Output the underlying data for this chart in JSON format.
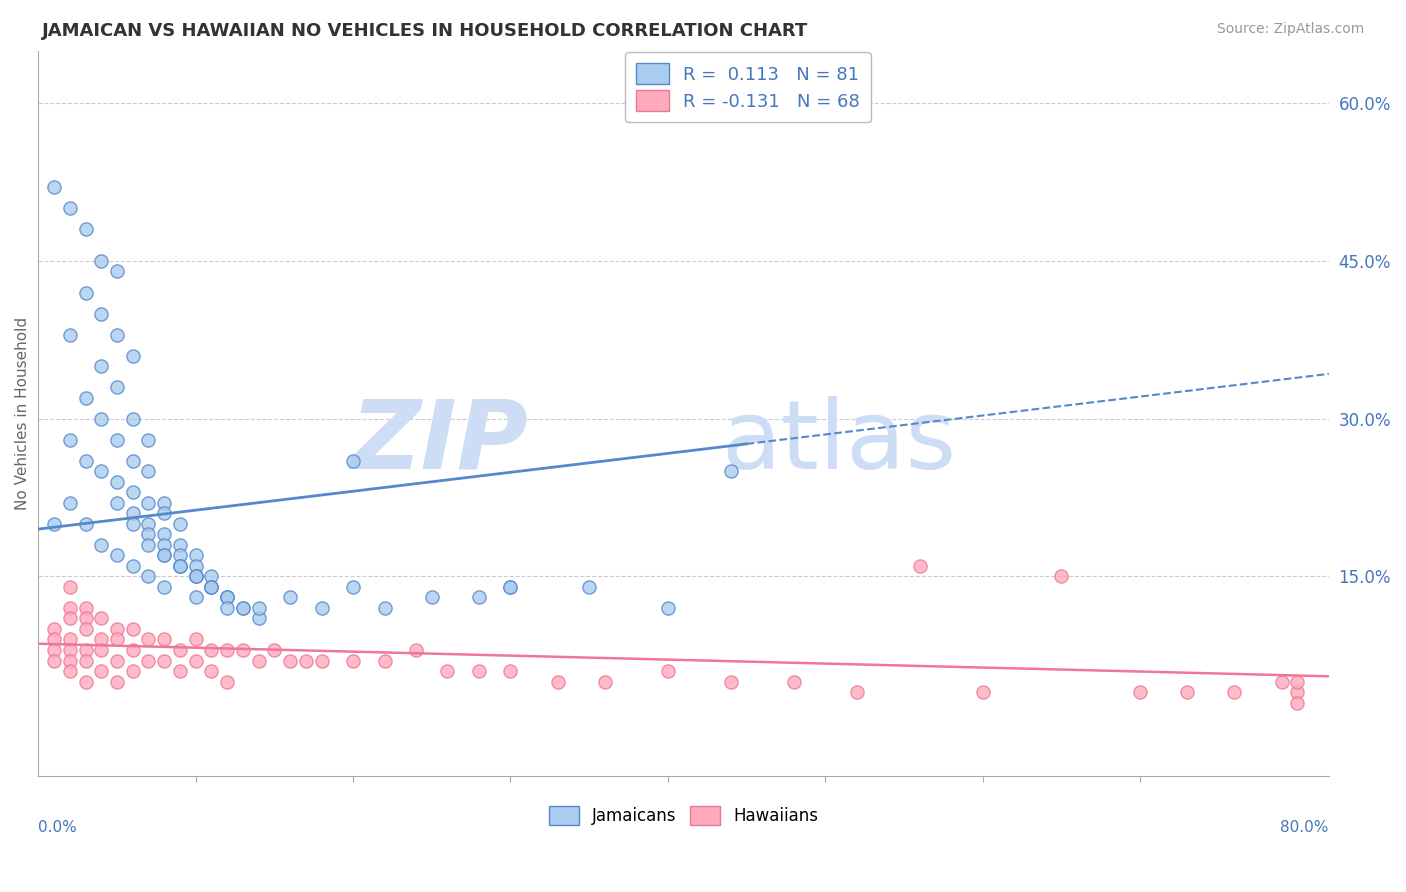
{
  "title": "JAMAICAN VS HAWAIIAN NO VEHICLES IN HOUSEHOLD CORRELATION CHART",
  "source": "Source: ZipAtlas.com",
  "ylabel": "No Vehicles in Household",
  "xlim": [
    0.0,
    0.82
  ],
  "ylim": [
    -0.04,
    0.65
  ],
  "legend_r1": "R =  0.113   N = 81",
  "legend_r2": "R = -0.131   N = 68",
  "legend_label1": "Jamaicans",
  "legend_label2": "Hawaiians",
  "blue_color": "#5588CC",
  "pink_color": "#EE7799",
  "blue_fill": "#AACCEE",
  "pink_fill": "#FFAABB",
  "grid_color": "#CCCCCC",
  "title_color": "#333333",
  "axis_label_color": "#4477BB",
  "ytick_vals": [
    0.15,
    0.3,
    0.45,
    0.6
  ],
  "ytick_labels": [
    "15.0%",
    "30.0%",
    "45.0%",
    "60.0%"
  ],
  "jamaican_x": [
    0.01,
    0.02,
    0.03,
    0.04,
    0.05,
    0.02,
    0.03,
    0.04,
    0.05,
    0.06,
    0.01,
    0.02,
    0.03,
    0.04,
    0.05,
    0.06,
    0.07,
    0.02,
    0.03,
    0.04,
    0.05,
    0.06,
    0.07,
    0.08,
    0.03,
    0.04,
    0.05,
    0.06,
    0.07,
    0.08,
    0.09,
    0.04,
    0.05,
    0.06,
    0.07,
    0.08,
    0.09,
    0.1,
    0.05,
    0.06,
    0.07,
    0.08,
    0.09,
    0.1,
    0.11,
    0.06,
    0.07,
    0.08,
    0.09,
    0.1,
    0.11,
    0.12,
    0.07,
    0.08,
    0.09,
    0.1,
    0.11,
    0.12,
    0.13,
    0.08,
    0.09,
    0.1,
    0.11,
    0.12,
    0.13,
    0.14,
    0.1,
    0.12,
    0.14,
    0.16,
    0.18,
    0.2,
    0.22,
    0.25,
    0.28,
    0.3,
    0.35,
    0.4,
    0.44,
    0.2,
    0.3
  ],
  "jamaican_y": [
    0.52,
    0.5,
    0.48,
    0.45,
    0.44,
    0.38,
    0.42,
    0.4,
    0.38,
    0.36,
    0.2,
    0.28,
    0.32,
    0.35,
    0.33,
    0.3,
    0.28,
    0.22,
    0.26,
    0.3,
    0.28,
    0.26,
    0.25,
    0.22,
    0.2,
    0.25,
    0.24,
    0.23,
    0.22,
    0.21,
    0.2,
    0.18,
    0.22,
    0.21,
    0.2,
    0.19,
    0.18,
    0.17,
    0.17,
    0.2,
    0.19,
    0.18,
    0.17,
    0.16,
    0.15,
    0.16,
    0.18,
    0.17,
    0.16,
    0.15,
    0.14,
    0.13,
    0.15,
    0.17,
    0.16,
    0.15,
    0.14,
    0.13,
    0.12,
    0.14,
    0.16,
    0.15,
    0.14,
    0.13,
    0.12,
    0.11,
    0.13,
    0.12,
    0.12,
    0.13,
    0.12,
    0.26,
    0.12,
    0.13,
    0.13,
    0.14,
    0.14,
    0.12,
    0.25,
    0.14,
    0.14
  ],
  "hawaiian_x": [
    0.01,
    0.01,
    0.01,
    0.01,
    0.02,
    0.02,
    0.02,
    0.02,
    0.02,
    0.02,
    0.02,
    0.03,
    0.03,
    0.03,
    0.03,
    0.03,
    0.03,
    0.04,
    0.04,
    0.04,
    0.04,
    0.05,
    0.05,
    0.05,
    0.05,
    0.06,
    0.06,
    0.06,
    0.07,
    0.07,
    0.08,
    0.08,
    0.09,
    0.09,
    0.1,
    0.1,
    0.11,
    0.11,
    0.12,
    0.12,
    0.13,
    0.14,
    0.15,
    0.16,
    0.17,
    0.18,
    0.2,
    0.22,
    0.24,
    0.26,
    0.28,
    0.3,
    0.33,
    0.36,
    0.4,
    0.44,
    0.48,
    0.52,
    0.56,
    0.6,
    0.65,
    0.7,
    0.73,
    0.76,
    0.79,
    0.8,
    0.8,
    0.8
  ],
  "hawaiian_y": [
    0.1,
    0.09,
    0.08,
    0.07,
    0.14,
    0.12,
    0.11,
    0.09,
    0.08,
    0.07,
    0.06,
    0.12,
    0.11,
    0.1,
    0.08,
    0.07,
    0.05,
    0.11,
    0.09,
    0.08,
    0.06,
    0.1,
    0.09,
    0.07,
    0.05,
    0.1,
    0.08,
    0.06,
    0.09,
    0.07,
    0.09,
    0.07,
    0.08,
    0.06,
    0.09,
    0.07,
    0.08,
    0.06,
    0.08,
    0.05,
    0.08,
    0.07,
    0.08,
    0.07,
    0.07,
    0.07,
    0.07,
    0.07,
    0.08,
    0.06,
    0.06,
    0.06,
    0.05,
    0.05,
    0.06,
    0.05,
    0.05,
    0.04,
    0.16,
    0.04,
    0.15,
    0.04,
    0.04,
    0.04,
    0.05,
    0.04,
    0.05,
    0.03
  ]
}
